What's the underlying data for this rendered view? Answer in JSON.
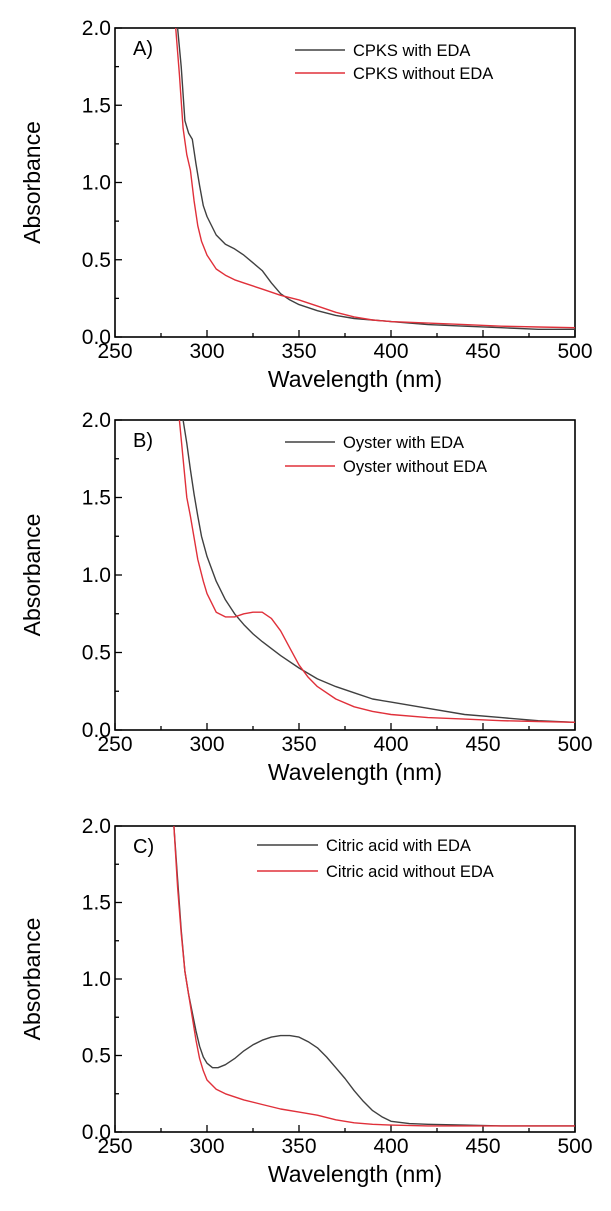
{
  "chart_data": [
    {
      "type": "line",
      "panel_label": "A)",
      "xlabel": "Wavelength (nm)",
      "ylabel": "Absorbance",
      "xlim": [
        250,
        500
      ],
      "ylim": [
        0.0,
        2.0
      ],
      "x_ticks": [
        "250",
        "300",
        "350",
        "400",
        "450",
        "500"
      ],
      "y_ticks": [
        "0.0",
        "0.5",
        "1.0",
        "1.5",
        "2.0"
      ],
      "legend_position": "top-right",
      "grid": false,
      "series": [
        {
          "name": "CPKS with EDA",
          "color": "#404040",
          "x": [
            284,
            286,
            288,
            290,
            292,
            294,
            296,
            298,
            300,
            305,
            310,
            315,
            320,
            325,
            330,
            335,
            340,
            345,
            350,
            360,
            370,
            380,
            390,
            400,
            420,
            440,
            460,
            480,
            500
          ],
          "y": [
            2.0,
            1.75,
            1.4,
            1.32,
            1.28,
            1.12,
            0.98,
            0.85,
            0.78,
            0.66,
            0.6,
            0.57,
            0.53,
            0.48,
            0.43,
            0.35,
            0.28,
            0.24,
            0.21,
            0.17,
            0.14,
            0.12,
            0.11,
            0.1,
            0.08,
            0.07,
            0.06,
            0.05,
            0.05
          ]
        },
        {
          "name": "CPKS without EDA",
          "color": "#e0303a",
          "x": [
            283,
            285,
            287,
            289,
            291,
            293,
            295,
            297,
            300,
            305,
            310,
            315,
            320,
            330,
            340,
            350,
            360,
            370,
            380,
            390,
            400,
            420,
            440,
            460,
            480,
            500
          ],
          "y": [
            2.0,
            1.7,
            1.35,
            1.18,
            1.08,
            0.88,
            0.72,
            0.62,
            0.53,
            0.44,
            0.4,
            0.37,
            0.35,
            0.31,
            0.27,
            0.24,
            0.2,
            0.16,
            0.13,
            0.11,
            0.1,
            0.09,
            0.08,
            0.07,
            0.065,
            0.06
          ]
        }
      ]
    },
    {
      "type": "line",
      "panel_label": "B)",
      "xlabel": "Wavelength (nm)",
      "ylabel": "Absorbance",
      "xlim": [
        250,
        500
      ],
      "ylim": [
        0.0,
        2.0
      ],
      "x_ticks": [
        "250",
        "300",
        "350",
        "400",
        "450",
        "500"
      ],
      "y_ticks": [
        "0.0",
        "0.5",
        "1.0",
        "1.5",
        "2.0"
      ],
      "legend_position": "top-right",
      "grid": false,
      "series": [
        {
          "name": "Oyster with EDA",
          "color": "#404040",
          "x": [
            287,
            289,
            291,
            293,
            295,
            297,
            300,
            305,
            310,
            315,
            320,
            325,
            330,
            340,
            350,
            360,
            370,
            380,
            390,
            400,
            420,
            440,
            460,
            480,
            500
          ],
          "y": [
            2.0,
            1.85,
            1.68,
            1.52,
            1.38,
            1.25,
            1.12,
            0.96,
            0.84,
            0.75,
            0.68,
            0.62,
            0.57,
            0.48,
            0.4,
            0.33,
            0.28,
            0.24,
            0.2,
            0.18,
            0.14,
            0.1,
            0.08,
            0.06,
            0.05
          ]
        },
        {
          "name": "Oyster without EDA",
          "color": "#e0303a",
          "x": [
            285,
            287,
            289,
            291,
            293,
            295,
            298,
            300,
            305,
            310,
            315,
            320,
            325,
            330,
            335,
            340,
            345,
            350,
            355,
            360,
            370,
            380,
            390,
            400,
            420,
            440,
            460,
            480,
            500
          ],
          "y": [
            2.0,
            1.75,
            1.5,
            1.38,
            1.24,
            1.1,
            0.96,
            0.88,
            0.76,
            0.73,
            0.73,
            0.75,
            0.76,
            0.76,
            0.72,
            0.64,
            0.53,
            0.42,
            0.34,
            0.28,
            0.2,
            0.15,
            0.12,
            0.1,
            0.08,
            0.07,
            0.06,
            0.055,
            0.05
          ]
        }
      ]
    },
    {
      "type": "line",
      "panel_label": "C)",
      "xlabel": "Wavelength (nm)",
      "ylabel": "Absorbance",
      "xlim": [
        250,
        500
      ],
      "ylim": [
        0.0,
        2.0
      ],
      "x_ticks": [
        "250",
        "300",
        "350",
        "400",
        "450",
        "500"
      ],
      "y_ticks": [
        "0.0",
        "0.5",
        "1.0",
        "1.5",
        "2.0"
      ],
      "legend_position": "top-right",
      "grid": false,
      "series": [
        {
          "name": "Citric acid with EDA",
          "color": "#404040",
          "x": [
            282,
            284,
            286,
            288,
            290,
            292,
            294,
            296,
            298,
            300,
            303,
            306,
            310,
            315,
            320,
            325,
            330,
            335,
            340,
            345,
            350,
            355,
            360,
            365,
            370,
            375,
            380,
            385,
            390,
            395,
            400,
            410,
            420,
            440,
            460,
            480,
            500
          ],
          "y": [
            2.0,
            1.65,
            1.32,
            1.05,
            0.9,
            0.78,
            0.66,
            0.56,
            0.49,
            0.45,
            0.42,
            0.42,
            0.44,
            0.48,
            0.53,
            0.57,
            0.6,
            0.62,
            0.63,
            0.63,
            0.62,
            0.59,
            0.55,
            0.49,
            0.42,
            0.35,
            0.27,
            0.2,
            0.14,
            0.1,
            0.07,
            0.055,
            0.05,
            0.045,
            0.04,
            0.04,
            0.04
          ]
        },
        {
          "name": "Citric acid without EDA",
          "color": "#e0303a",
          "x": [
            282,
            284,
            286,
            288,
            290,
            292,
            294,
            296,
            298,
            300,
            305,
            310,
            320,
            330,
            340,
            350,
            360,
            370,
            380,
            390,
            400,
            420,
            440,
            460,
            480,
            500
          ],
          "y": [
            2.0,
            1.6,
            1.3,
            1.05,
            0.9,
            0.75,
            0.6,
            0.48,
            0.4,
            0.34,
            0.28,
            0.25,
            0.21,
            0.18,
            0.15,
            0.13,
            0.11,
            0.08,
            0.06,
            0.05,
            0.045,
            0.04,
            0.04,
            0.04,
            0.04,
            0.04
          ]
        }
      ]
    }
  ]
}
